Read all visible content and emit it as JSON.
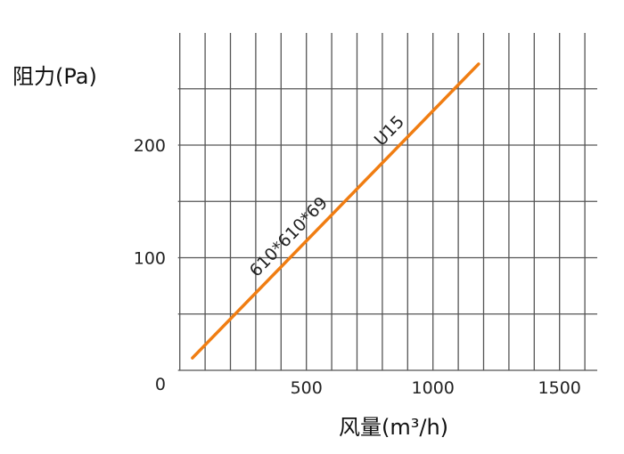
{
  "chart_data": {
    "type": "line",
    "title": "",
    "xlabel": "风量(m³/h)",
    "ylabel": "阻力(Pa)",
    "xlim": [
      0,
      1600
    ],
    "ylim": [
      0,
      300
    ],
    "x_ticks": [
      500,
      1000,
      1500
    ],
    "x_tick_labels": [
      "500",
      "1000",
      "1500"
    ],
    "y_ticks": [
      0,
      100,
      200
    ],
    "y_tick_labels": [
      "0",
      "100",
      "200"
    ],
    "grid": true,
    "x_grid_step": 100,
    "y_grid_step": 50,
    "series": [
      {
        "color": "#f07d12",
        "x": [
          50,
          1180
        ],
        "y": [
          11,
          272
        ]
      }
    ],
    "annotations": [
      "610*610*69",
      "U15"
    ]
  }
}
